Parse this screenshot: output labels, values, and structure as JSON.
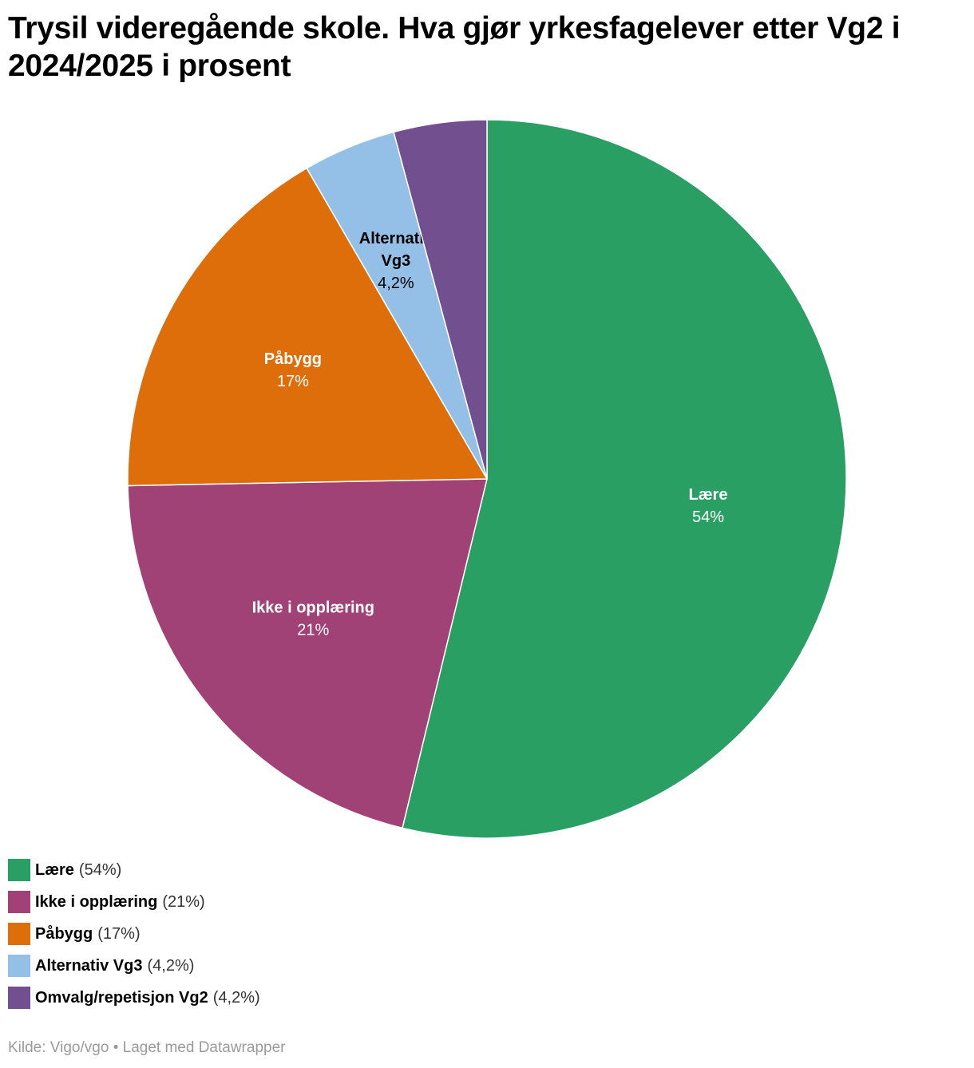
{
  "title": "Trysil videregående skole. Hva gjør yrkesfagelever etter Vg2 i 2024/2025 i prosent",
  "footer": {
    "source": "Kilde: Vigo/vgo",
    "separator": "•",
    "credit": "Laget med Datawrapper"
  },
  "chart_data": {
    "type": "pie",
    "title": "Trysil videregående skole. Hva gjør yrkesfagelever etter Vg2 i 2024/2025 i prosent",
    "slices": [
      {
        "name": "Lære",
        "value": 54,
        "value_label": "54%",
        "legend_value": "(54%)",
        "color": "#2a9f63",
        "label_lines": [
          "Lære"
        ],
        "label_color": "#ffffff",
        "show_label": true
      },
      {
        "name": "Ikke i opplæring",
        "value": 21,
        "value_label": "21%",
        "legend_value": "(21%)",
        "color": "#a04275",
        "label_lines": [
          "Ikke i opplæring"
        ],
        "label_color": "#ffffff",
        "show_label": true
      },
      {
        "name": "Påbygg",
        "value": 17,
        "value_label": "17%",
        "legend_value": "(17%)",
        "color": "#dd6e0a",
        "label_lines": [
          "Påbygg"
        ],
        "label_color": "#ffffff",
        "show_label": true
      },
      {
        "name": "Alternativ Vg3",
        "value": 4.2,
        "value_label": "4,2%",
        "legend_value": "(4,2%)",
        "color": "#94c0e8",
        "label_lines": [
          "Alternativ",
          "Vg3"
        ],
        "label_color": "#000000",
        "show_label": true
      },
      {
        "name": "Omvalg/repetisjon Vg2",
        "value": 4.2,
        "value_label": "4,2%",
        "legend_value": "(4,2%)",
        "color": "#724f8f",
        "label_lines": [],
        "label_color": "#ffffff",
        "show_label": false
      }
    ],
    "legend_position": "bottom-left"
  }
}
